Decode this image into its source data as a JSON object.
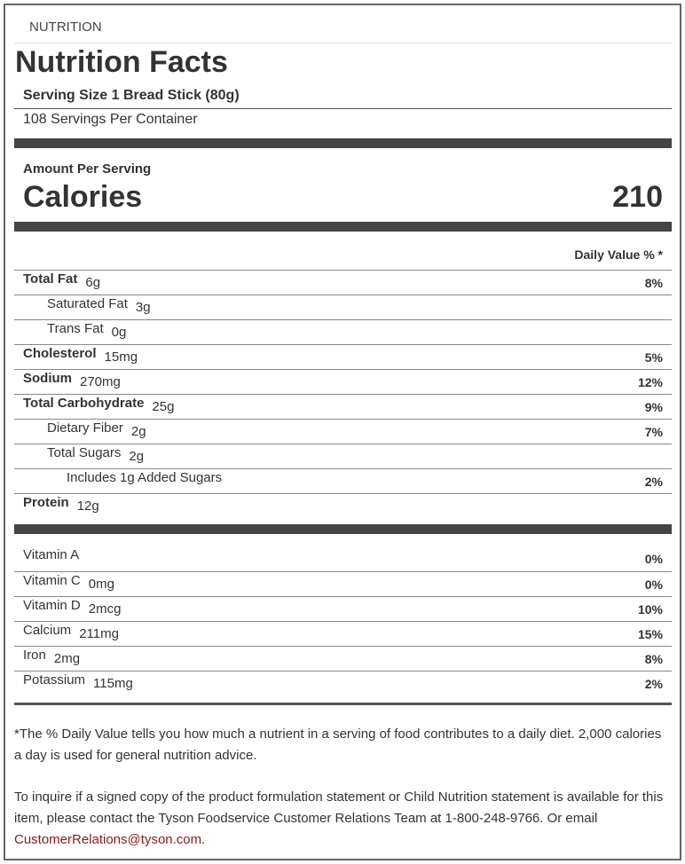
{
  "header": {
    "section": "NUTRITION",
    "title": "Nutrition Facts"
  },
  "serving": {
    "size": "Serving Size 1 Bread Stick (80g)",
    "per_container": "108 Servings Per Container"
  },
  "calories": {
    "caption": "Amount Per Serving",
    "label": "Calories",
    "value": 210
  },
  "daily_value_header": "Daily Value % *",
  "nutrients": [
    {
      "name": "Total Fat",
      "amount": "6g",
      "dv": "8%",
      "sub": [
        {
          "name": "Saturated Fat",
          "amount": "3g"
        },
        {
          "name": "Trans Fat",
          "amount": "0g"
        }
      ]
    },
    {
      "name": "Cholesterol",
      "amount": "15mg",
      "dv": "5%"
    },
    {
      "name": "Sodium",
      "amount": "270mg",
      "dv": "12%"
    },
    {
      "name": "Total Carbohydrate",
      "amount": "25g",
      "dv": "9%",
      "sub": [
        {
          "name": "Dietary Fiber",
          "amount": "2g",
          "dv": "7%"
        },
        {
          "name": "Total Sugars",
          "amount": "2g",
          "sub": [
            {
              "name": "Includes 1g Added Sugars",
              "dv": "2%"
            }
          ]
        }
      ]
    },
    {
      "name": "Protein",
      "amount": "12g"
    }
  ],
  "vitamins": [
    {
      "name": "Vitamin A",
      "dv": "0%"
    },
    {
      "name": "Vitamin C",
      "amount": "0mg",
      "dv": "0%"
    },
    {
      "name": "Vitamin D",
      "amount": "2mcg",
      "dv": "10%"
    },
    {
      "name": "Calcium",
      "amount": "211mg",
      "dv": "15%"
    },
    {
      "name": "Iron",
      "amount": "2mg",
      "dv": "8%"
    },
    {
      "name": "Potassium",
      "amount": "115mg",
      "dv": "2%"
    }
  ],
  "footnote": "*The % Daily Value tells you how much a nutrient in a serving of food contributes to a daily diet. 2,000 calories a day is used for general nutrition advice.",
  "inquiry": {
    "before": "To inquire if a signed copy of the product formulation statement or Child Nutrition statement is available for this item, please contact the Tyson Foodservice Customer Relations Team at 1-800-248-9766. Or email ",
    "email": "CustomerRelations@tyson.com",
    "after": "."
  }
}
